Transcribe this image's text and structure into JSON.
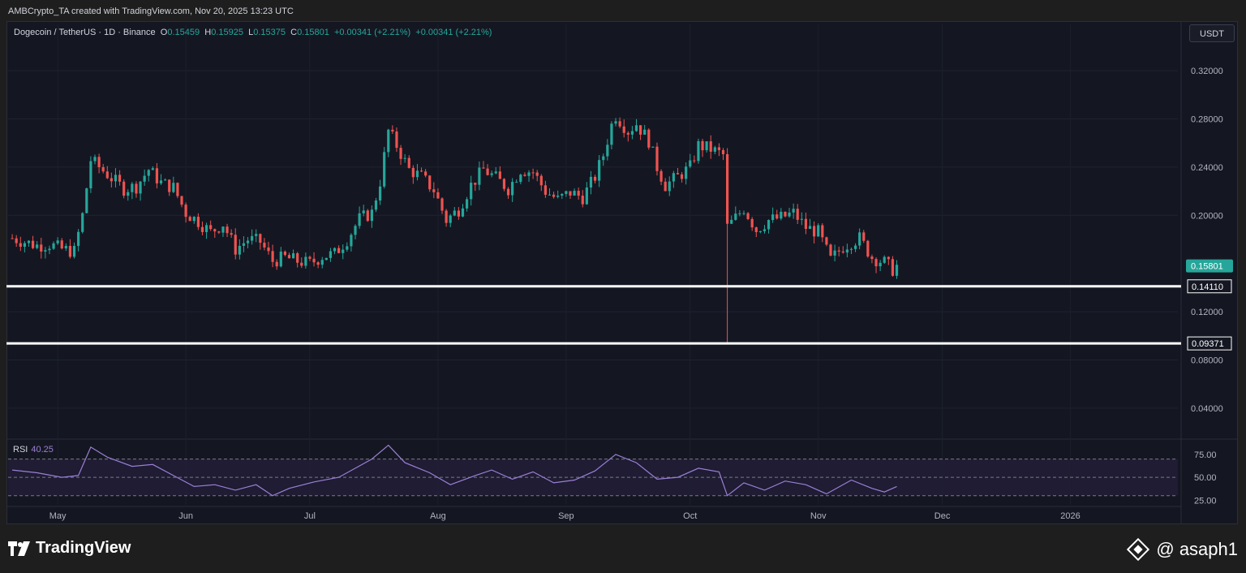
{
  "header": {
    "credit": "AMBCrypto_TA created with TradingView.com, Nov 20, 2025 13:23 UTC",
    "symbol": "Dogecoin / TetherUS · 1D · Binance",
    "open_label": "O",
    "open": "0.15459",
    "high_label": "H",
    "high": "0.15925",
    "low_label": "L",
    "low": "0.15375",
    "close_label": "C",
    "close": "0.15801",
    "change": "+0.00341 (+2.21%)",
    "change2": "+0.00341 (+2.21%)",
    "currency": "USDT"
  },
  "rsi": {
    "label": "RSI",
    "value": "40.25"
  },
  "footer": {
    "brand": "TradingView",
    "handle": "@ asaph1"
  },
  "colors": {
    "bg": "#141722",
    "up": "#26a69a",
    "down": "#ef5350",
    "rsi": "#9b7fd4",
    "level": "#ffffff"
  },
  "chart_data": [
    {
      "type": "candlestick",
      "title": "Dogecoin / TetherUS · 1D · Binance",
      "x_ticks": [
        "May",
        "Jun",
        "Jul",
        "Aug",
        "Sep",
        "Oct",
        "Nov",
        "Dec",
        "2026"
      ],
      "y_ticks": [
        "0.32000",
        "0.28000",
        "0.24000",
        "0.20000",
        "0.12000",
        "0.08000",
        "0.04000"
      ],
      "ylim": [
        0.015,
        0.345
      ],
      "last_price": "0.15801",
      "levels": [
        {
          "label": "0.14110",
          "value": 0.1411
        },
        {
          "label": "0.09371",
          "value": 0.09371
        }
      ],
      "close_path": [
        [
          "2025-04-20",
          0.181
        ],
        [
          "2025-04-23",
          0.178
        ],
        [
          "2025-04-26",
          0.175
        ],
        [
          "2025-04-29",
          0.176
        ],
        [
          "2025-05-02",
          0.172
        ],
        [
          "2025-05-05",
          0.17
        ],
        [
          "2025-05-07",
          0.2
        ],
        [
          "2025-05-09",
          0.246
        ],
        [
          "2025-05-11",
          0.24
        ],
        [
          "2025-05-14",
          0.231
        ],
        [
          "2025-05-17",
          0.222
        ],
        [
          "2025-05-20",
          0.224
        ],
        [
          "2025-05-23",
          0.238
        ],
        [
          "2025-05-26",
          0.227
        ],
        [
          "2025-05-29",
          0.223
        ],
        [
          "2025-06-01",
          0.202
        ],
        [
          "2025-06-04",
          0.195
        ],
        [
          "2025-06-07",
          0.186
        ],
        [
          "2025-06-10",
          0.193
        ],
        [
          "2025-06-13",
          0.172
        ],
        [
          "2025-06-16",
          0.18
        ],
        [
          "2025-06-19",
          0.178
        ],
        [
          "2025-06-22",
          0.162
        ],
        [
          "2025-06-25",
          0.165
        ],
        [
          "2025-06-28",
          0.162
        ],
        [
          "2025-07-01",
          0.16
        ],
        [
          "2025-07-04",
          0.166
        ],
        [
          "2025-07-07",
          0.168
        ],
        [
          "2025-07-10",
          0.18
        ],
        [
          "2025-07-13",
          0.197
        ],
        [
          "2025-07-16",
          0.202
        ],
        [
          "2025-07-18",
          0.228
        ],
        [
          "2025-07-20",
          0.27
        ],
        [
          "2025-07-22",
          0.258
        ],
        [
          "2025-07-25",
          0.238
        ],
        [
          "2025-07-28",
          0.232
        ],
        [
          "2025-07-31",
          0.221
        ],
        [
          "2025-08-03",
          0.196
        ],
        [
          "2025-08-06",
          0.205
        ],
        [
          "2025-08-09",
          0.225
        ],
        [
          "2025-08-12",
          0.238
        ],
        [
          "2025-08-15",
          0.231
        ],
        [
          "2025-08-18",
          0.222
        ],
        [
          "2025-08-21",
          0.238
        ],
        [
          "2025-08-24",
          0.236
        ],
        [
          "2025-08-27",
          0.22
        ],
        [
          "2025-08-30",
          0.213
        ],
        [
          "2025-09-02",
          0.219
        ],
        [
          "2025-09-05",
          0.215
        ],
        [
          "2025-09-08",
          0.232
        ],
        [
          "2025-09-10",
          0.25
        ],
        [
          "2025-09-12",
          0.275
        ],
        [
          "2025-09-13",
          0.283
        ],
        [
          "2025-09-16",
          0.27
        ],
        [
          "2025-09-18",
          0.276
        ],
        [
          "2025-09-21",
          0.262
        ],
        [
          "2025-09-23",
          0.24
        ],
        [
          "2025-09-25",
          0.225
        ],
        [
          "2025-09-28",
          0.232
        ],
        [
          "2025-10-01",
          0.24
        ],
        [
          "2025-10-03",
          0.258
        ],
        [
          "2025-10-06",
          0.255
        ],
        [
          "2025-10-09",
          0.25
        ],
        [
          "2025-10-10",
          0.19
        ],
        [
          "2025-10-12",
          0.198
        ],
        [
          "2025-10-14",
          0.206
        ],
        [
          "2025-10-17",
          0.188
        ],
        [
          "2025-10-20",
          0.196
        ],
        [
          "2025-10-23",
          0.198
        ],
        [
          "2025-10-26",
          0.202
        ],
        [
          "2025-10-29",
          0.19
        ],
        [
          "2025-11-01",
          0.186
        ],
        [
          "2025-11-04",
          0.163
        ],
        [
          "2025-11-07",
          0.174
        ],
        [
          "2025-11-09",
          0.178
        ],
        [
          "2025-11-11",
          0.181
        ],
        [
          "2025-11-14",
          0.165
        ],
        [
          "2025-11-17",
          0.161
        ],
        [
          "2025-11-19",
          0.155
        ],
        [
          "2025-11-20",
          0.158
        ]
      ]
    },
    {
      "type": "line",
      "name": "RSI",
      "value": "40.25",
      "y_ticks": [
        "75.00",
        "50.00",
        "25.00"
      ],
      "ylim": [
        20,
        90
      ],
      "bands": [
        30,
        50,
        70
      ],
      "series": [
        {
          "name": "RSI",
          "values": [
            [
              "2025-04-20",
              58
            ],
            [
              "2025-04-26",
              55
            ],
            [
              "2025-05-02",
              50
            ],
            [
              "2025-05-06",
              52
            ],
            [
              "2025-05-09",
              83
            ],
            [
              "2025-05-13",
              72
            ],
            [
              "2025-05-19",
              62
            ],
            [
              "2025-05-24",
              64
            ],
            [
              "2025-05-29",
              52
            ],
            [
              "2025-06-03",
              40
            ],
            [
              "2025-06-08",
              42
            ],
            [
              "2025-06-13",
              36
            ],
            [
              "2025-06-18",
              42
            ],
            [
              "2025-06-22",
              30
            ],
            [
              "2025-06-26",
              38
            ],
            [
              "2025-07-02",
              45
            ],
            [
              "2025-07-08",
              50
            ],
            [
              "2025-07-12",
              60
            ],
            [
              "2025-07-16",
              70
            ],
            [
              "2025-07-20",
              85
            ],
            [
              "2025-07-24",
              66
            ],
            [
              "2025-07-30",
              55
            ],
            [
              "2025-08-04",
              42
            ],
            [
              "2025-08-10",
              52
            ],
            [
              "2025-08-14",
              58
            ],
            [
              "2025-08-19",
              48
            ],
            [
              "2025-08-24",
              56
            ],
            [
              "2025-08-29",
              44
            ],
            [
              "2025-09-03",
              47
            ],
            [
              "2025-09-08",
              57
            ],
            [
              "2025-09-13",
              75
            ],
            [
              "2025-09-18",
              66
            ],
            [
              "2025-09-23",
              48
            ],
            [
              "2025-09-28",
              50
            ],
            [
              "2025-10-03",
              60
            ],
            [
              "2025-10-08",
              56
            ],
            [
              "2025-10-10",
              30
            ],
            [
              "2025-10-14",
              44
            ],
            [
              "2025-10-19",
              36
            ],
            [
              "2025-10-24",
              46
            ],
            [
              "2025-10-29",
              42
            ],
            [
              "2025-11-03",
              32
            ],
            [
              "2025-11-09",
              47
            ],
            [
              "2025-11-14",
              38
            ],
            [
              "2025-11-17",
              34
            ],
            [
              "2025-11-20",
              40
            ]
          ]
        }
      ]
    }
  ]
}
